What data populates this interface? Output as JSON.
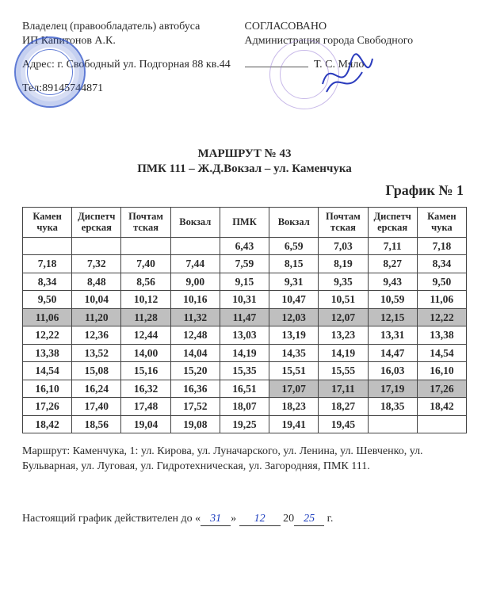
{
  "left": {
    "owner_line": "Владелец (правообладатель) автобуса",
    "ip": "ИП Капитонов А.К.",
    "address": "Адрес: г. Свободный ул. Подгорная 88 кв.44",
    "tel": "Тел:89145744871"
  },
  "right": {
    "approved": "СОГЛАСОВАНО",
    "admin": "Администрация города Свободного",
    "signer": "Т. С. Мяло"
  },
  "title": {
    "line1": "МАРШРУТ № 43",
    "line2": "ПМК 111 – Ж.Д.Вокзал – ул. Каменчука",
    "grafik": "График  № 1"
  },
  "columns": [
    "Камен\nчука",
    "Диспетч\nерская",
    "Почтам\nтская",
    "Вокзал",
    "ПМК",
    "Вокзал",
    "Почтам\nтская",
    "Диспетч\nерская",
    "Камен\nчука"
  ],
  "rows": [
    {
      "cells": [
        "",
        "",
        "",
        "",
        "6,43",
        "6,59",
        "7,03",
        "7,11",
        "7,18"
      ],
      "shade": []
    },
    {
      "cells": [
        "7,18",
        "7,32",
        "7,40",
        "7,44",
        "7,59",
        "8,15",
        "8,19",
        "8,27",
        "8,34"
      ],
      "shade": []
    },
    {
      "cells": [
        "8,34",
        "8,48",
        "8,56",
        "9,00",
        "9,15",
        "9,31",
        "9,35",
        "9,43",
        "9,50"
      ],
      "shade": []
    },
    {
      "cells": [
        "9,50",
        "10,04",
        "10,12",
        "10,16",
        "10,31",
        "10,47",
        "10,51",
        "10,59",
        "11,06"
      ],
      "shade": []
    },
    {
      "cells": [
        "11,06",
        "11,20",
        "11,28",
        "11,32",
        "11,47",
        "12,03",
        "12,07",
        "12,15",
        "12,22"
      ],
      "shade": [
        0,
        1,
        2,
        3,
        4,
        5,
        6,
        7,
        8
      ]
    },
    {
      "cells": [
        "12,22",
        "12,36",
        "12,44",
        "12,48",
        "13,03",
        "13,19",
        "13,23",
        "13,31",
        "13,38"
      ],
      "shade": []
    },
    {
      "cells": [
        "13,38",
        "13,52",
        "14,00",
        "14,04",
        "14,19",
        "14,35",
        "14,19",
        "14,47",
        "14,54"
      ],
      "shade": []
    },
    {
      "cells": [
        "14,54",
        "15,08",
        "15,16",
        "15,20",
        "15,35",
        "15,51",
        "15,55",
        "16,03",
        "16,10"
      ],
      "shade": []
    },
    {
      "cells": [
        "16,10",
        "16,24",
        "16,32",
        "16,36",
        "16,51",
        "17,07",
        "17,11",
        "17,19",
        "17,26"
      ],
      "shade": [
        5,
        6,
        7,
        8
      ]
    },
    {
      "cells": [
        "17,26",
        "17,40",
        "17,48",
        "17,52",
        "18,07",
        "18,23",
        "18,27",
        "18,35",
        "18,42"
      ],
      "shade": []
    },
    {
      "cells": [
        "18,42",
        "18,56",
        "19,04",
        "19,08",
        "19,25",
        "19,41",
        "19,45",
        "",
        ""
      ],
      "shade": []
    }
  ],
  "route_desc": "Маршрут: Каменчука, 1: ул. Кирова, ул. Луначарского, ул. Ленина, ул. Шевченко, ул. Бульварная, ул. Луговая, ул. Гидротехническая, ул. Загородняя, ПМК 111.",
  "valid": {
    "prefix": "Настоящий график действителен до «",
    "day": "31",
    "mid1": "»",
    "month": "12",
    "mid2": "20",
    "year": "25",
    "suffix": "г."
  }
}
